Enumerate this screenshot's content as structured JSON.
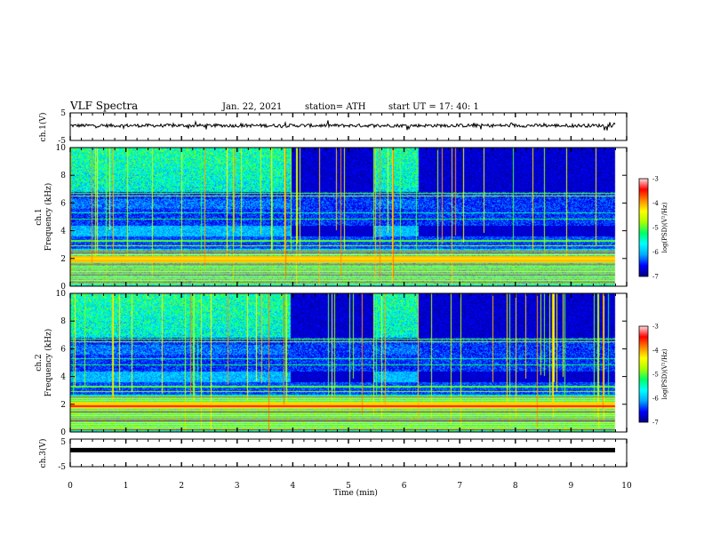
{
  "header": {
    "title": "VLF Spectra",
    "date": "Jan. 22, 2021",
    "station": "station= ATH",
    "start": "start  UT =   17: 40: 1"
  },
  "chart_data": [
    {
      "type": "line",
      "ylabel": "ch.1(V)",
      "ylim": [
        -5,
        5
      ],
      "yticks": [
        "5",
        "-5"
      ],
      "xlim": [
        0,
        10
      ],
      "baseline": 0.4,
      "noise": 0.6
    },
    {
      "type": "heatmap",
      "ylabel_1": "ch.1",
      "ylabel_2": "Frequency (kHz)",
      "ylim": [
        0,
        10
      ],
      "yticks": [
        "0",
        "2",
        "4",
        "6",
        "8",
        "10"
      ],
      "xlim": [
        0,
        10
      ],
      "data_end_min": 9.8,
      "colorbar": {
        "label": "log(PSD)(V²/Hz)",
        "range": [
          -7,
          -3
        ],
        "ticks": [
          "-3",
          "-4",
          "-5",
          "-6",
          "-7"
        ]
      },
      "quiet_intervals_min": [
        [
          3.95,
          5.45
        ],
        [
          6.25,
          9.8
        ]
      ]
    },
    {
      "type": "heatmap",
      "ylabel_1": "ch.2",
      "ylabel_2": "Frequency (kHz)",
      "ylim": [
        0,
        10
      ],
      "yticks": [
        "0",
        "2",
        "4",
        "6",
        "8",
        "10"
      ],
      "xlim": [
        0,
        10
      ],
      "data_end_min": 9.8,
      "colorbar": {
        "label": "log(PSD)(V²/Hz)",
        "range": [
          -7,
          -3
        ],
        "ticks": [
          "-3",
          "-4",
          "-5",
          "-6",
          "-7"
        ]
      },
      "quiet_intervals_min": [
        [
          3.95,
          5.45
        ],
        [
          6.25,
          9.8
        ]
      ]
    },
    {
      "type": "line",
      "ylabel": "ch.3(V)",
      "ylim": [
        -5,
        5
      ],
      "yticks": [
        "5",
        "-5"
      ],
      "xlim": [
        0,
        10
      ],
      "baseline": 1.0,
      "noise": 0.0
    }
  ],
  "xaxis": {
    "label": "Time (min)",
    "ticks": [
      "0",
      "1",
      "2",
      "3",
      "4",
      "5",
      "6",
      "7",
      "8",
      "9",
      "10"
    ]
  },
  "colors": {
    "colormap": [
      "#000080",
      "#0000ff",
      "#00aaff",
      "#00ffff",
      "#00ff66",
      "#aaff00",
      "#ffff00",
      "#ff8800",
      "#ff0000",
      "#ffdddd"
    ]
  }
}
